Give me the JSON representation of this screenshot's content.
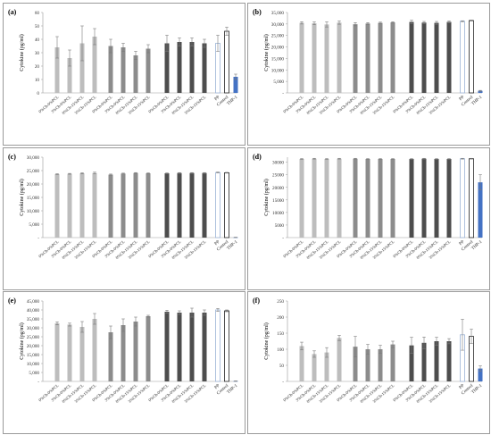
{
  "group_labels": [
    "0%Ch-0%PCL",
    "3%Ch-0%PCL",
    "0%Ch-15%PCL",
    "3%Ch-15%PCL"
  ],
  "control_labels": [
    "PP",
    "Control",
    "THP-1"
  ],
  "colors": {
    "group1": "#bdbdbd",
    "group2": "#8c8c8c",
    "group3": "#4d4d4d",
    "pp_edge": "#9bb3d6",
    "control_edge": "#222222",
    "thp1": "#4472c4",
    "error": "#7a7a7a"
  },
  "chart_data": [
    {
      "panel": "(a)",
      "type": "bar",
      "ylabel": "Cytokine (pg/ml)",
      "ylim": [
        0,
        60
      ],
      "yticks": [
        0,
        10,
        20,
        30,
        40,
        50,
        60
      ],
      "ytick_labels": [
        "0",
        "10",
        "20",
        "30",
        "40",
        "50",
        "60"
      ],
      "groups": [
        {
          "values": [
            34,
            26,
            37,
            42
          ],
          "errors": [
            8,
            6,
            13,
            6
          ]
        },
        {
          "values": [
            35,
            34,
            28,
            33
          ],
          "errors": [
            5,
            3,
            3,
            3
          ]
        },
        {
          "values": [
            37,
            38,
            38,
            37
          ],
          "errors": [
            6,
            3,
            3,
            3
          ]
        }
      ],
      "controls": {
        "values": [
          37,
          46,
          12
        ],
        "errors": [
          6,
          3,
          2
        ]
      }
    },
    {
      "panel": "(b)",
      "type": "bar",
      "ylabel": "Cytokine (pg/ml)",
      "ylim": [
        0,
        35000
      ],
      "yticks": [
        0,
        5000,
        10000,
        15000,
        20000,
        25000,
        30000,
        35000
      ],
      "ytick_labels": [
        "-",
        "5,000",
        "10,000",
        "15,000",
        "20,000",
        "25,000",
        "30,000",
        "35,000"
      ],
      "groups": [
        {
          "values": [
            30500,
            30300,
            29800,
            30600
          ],
          "errors": [
            500,
            600,
            1100,
            700
          ]
        },
        {
          "values": [
            29900,
            30200,
            30500,
            30700
          ],
          "errors": [
            700,
            400,
            300,
            300
          ]
        },
        {
          "values": [
            30900,
            30600,
            30500,
            30900
          ],
          "errors": [
            700,
            500,
            600,
            400
          ]
        }
      ],
      "controls": {
        "values": [
          31200,
          31500,
          900
        ],
        "errors": [
          200,
          200,
          200
        ]
      }
    },
    {
      "panel": "(c)",
      "type": "bar",
      "ylabel": "Cytokine (pg/ml)",
      "ylim": [
        0,
        30000
      ],
      "yticks": [
        0,
        5000,
        10000,
        15000,
        20000,
        25000,
        30000
      ],
      "ytick_labels": [
        "-",
        "5,000",
        "10,000",
        "15,000",
        "20,000",
        "25,000",
        "30,000"
      ],
      "groups": [
        {
          "values": [
            23700,
            23800,
            24000,
            24100
          ],
          "errors": [
            150,
            150,
            200,
            300
          ]
        },
        {
          "values": [
            23500,
            23900,
            24100,
            24000
          ],
          "errors": [
            200,
            150,
            150,
            150
          ]
        },
        {
          "values": [
            24000,
            24100,
            24100,
            24100
          ],
          "errors": [
            150,
            150,
            150,
            150
          ]
        }
      ],
      "controls": {
        "values": [
          24300,
          24200,
          100
        ],
        "errors": [
          150,
          150,
          50
        ]
      }
    },
    {
      "panel": "(d)",
      "type": "bar",
      "ylabel": "Cytokine (pg/ml)",
      "ylim": [
        0,
        32000
      ],
      "yticks": [
        0,
        5000,
        10000,
        15000,
        20000,
        25000,
        30000
      ],
      "ytick_labels": [
        "-",
        "5000",
        "10000",
        "15000",
        "20000",
        "25000",
        "30000"
      ],
      "groups": [
        {
          "values": [
            31300,
            31400,
            31300,
            31400
          ],
          "errors": [
            150,
            150,
            150,
            150
          ]
        },
        {
          "values": [
            31400,
            31300,
            31300,
            31300
          ],
          "errors": [
            150,
            150,
            150,
            150
          ]
        },
        {
          "values": [
            31300,
            31400,
            31300,
            31300
          ],
          "errors": [
            150,
            150,
            150,
            150
          ]
        }
      ],
      "controls": {
        "values": [
          31400,
          31400,
          22000
        ],
        "errors": [
          150,
          150,
          3000
        ]
      }
    },
    {
      "panel": "(e)",
      "type": "bar",
      "ylabel": "Cytokine (pg/ml)",
      "ylim": [
        0,
        45000
      ],
      "yticks": [
        0,
        5000,
        10000,
        15000,
        20000,
        25000,
        30000,
        35000,
        40000,
        45000
      ],
      "ytick_labels": [
        "-",
        "5,000",
        "10,000",
        "15,000",
        "20,000",
        "25,000",
        "30,000",
        "35,000",
        "40,000",
        "45,000"
      ],
      "groups": [
        {
          "values": [
            32500,
            31800,
            30500,
            35000
          ],
          "errors": [
            800,
            800,
            3000,
            3000
          ]
        },
        {
          "values": [
            27500,
            31500,
            33500,
            36500
          ],
          "errors": [
            3500,
            3500,
            2500,
            500
          ]
        },
        {
          "values": [
            39000,
            38500,
            38500,
            38500
          ],
          "errors": [
            800,
            1000,
            2500,
            1500
          ]
        }
      ],
      "controls": {
        "values": [
          40000,
          39500,
          200
        ],
        "errors": [
          800,
          500,
          100
        ]
      }
    },
    {
      "panel": "(f)",
      "type": "bar",
      "ylabel": "Cytokine (pg/ml)",
      "ylim": [
        0,
        250
      ],
      "yticks": [
        0,
        50,
        100,
        150,
        200,
        250
      ],
      "ytick_labels": [
        "-",
        "50",
        "100",
        "150",
        "200",
        "250"
      ],
      "groups": [
        {
          "values": [
            110,
            85,
            90,
            135
          ],
          "errors": [
            12,
            10,
            15,
            8
          ]
        },
        {
          "values": [
            108,
            100,
            100,
            115
          ],
          "errors": [
            32,
            15,
            12,
            10
          ]
        },
        {
          "values": [
            112,
            120,
            125,
            125
          ],
          "errors": [
            25,
            18,
            12,
            8
          ]
        }
      ],
      "controls": {
        "values": [
          145,
          140,
          40
        ],
        "errors": [
          48,
          22,
          8
        ]
      }
    }
  ]
}
